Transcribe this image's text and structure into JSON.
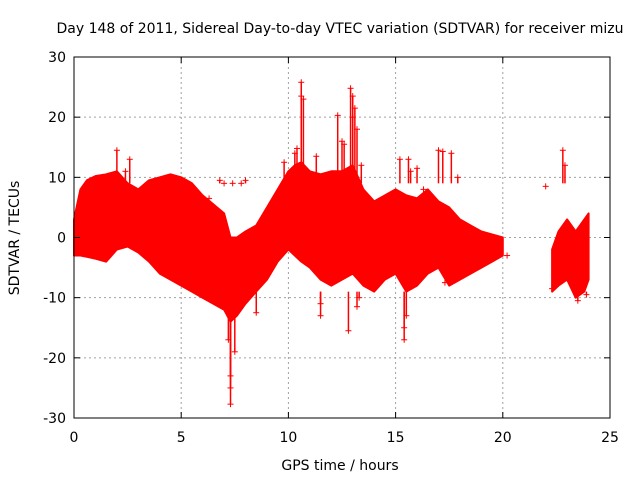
{
  "chart_data": {
    "type": "scatter",
    "title": "Day 148 of 2011, Sidereal Day-to-day VTEC variation (SDTVAR) for receiver mizu",
    "xlabel": "GPS time / hours",
    "ylabel": "SDTVAR / TECUs",
    "xlim": [
      0,
      25
    ],
    "ylim": [
      -30,
      30
    ],
    "xticks": [
      0,
      5,
      10,
      15,
      20,
      25
    ],
    "yticks": [
      -30,
      -20,
      -10,
      0,
      10,
      20,
      30
    ],
    "xtick_labels": [
      "0",
      "5",
      "10",
      "15",
      "20",
      "25"
    ],
    "ytick_labels": [
      "-30",
      "-20",
      "-10",
      "0",
      "10",
      "20",
      "30"
    ],
    "grid": true,
    "marker": "+",
    "series": [
      {
        "name": "SDTVAR",
        "color": "#ff0000",
        "envelope": {
          "x": [
            0,
            0.3,
            0.6,
            1,
            1.5,
            2,
            2.5,
            3,
            3.5,
            4,
            4.5,
            5,
            5.5,
            6,
            6.5,
            7,
            7.3,
            7.6,
            8,
            8.5,
            9,
            9.5,
            10,
            10.3,
            10.6,
            11,
            11.5,
            12,
            12.5,
            13,
            13.5,
            14,
            14.5,
            15,
            15.5,
            16,
            16.5,
            17,
            17.5,
            18,
            18.5,
            19,
            19.5,
            20
          ],
          "upper": [
            3,
            8,
            9.5,
            10.2,
            10.5,
            11,
            9,
            8,
            9.5,
            10,
            10.5,
            10,
            9,
            7,
            5.5,
            4,
            0,
            0,
            1,
            2,
            5,
            8,
            11,
            12,
            12.5,
            11,
            10.5,
            11,
            11,
            12,
            8,
            6,
            7,
            8,
            7,
            6.5,
            8,
            6,
            5,
            3,
            2,
            1,
            0.5,
            0
          ],
          "lower": [
            -3,
            -3,
            -3.2,
            -3.5,
            -4,
            -2,
            -1.5,
            -2.5,
            -4,
            -6,
            -7,
            -8,
            -9,
            -10,
            -11,
            -12,
            -14,
            -13,
            -11,
            -9,
            -7,
            -4,
            -2,
            -3,
            -4,
            -5,
            -7,
            -8,
            -7,
            -6,
            -8,
            -9,
            -7,
            -6,
            -9,
            -8,
            -6,
            -5,
            -8,
            -7,
            -6,
            -5,
            -4,
            -3
          ]
        },
        "envelope_2": {
          "x": [
            22.3,
            22.6,
            23,
            23.4,
            23.8,
            24
          ],
          "upper": [
            -2,
            1,
            3,
            1,
            3,
            4
          ],
          "lower": [
            -9,
            -8,
            -7,
            -10,
            -9,
            -7
          ]
        },
        "points": [
          {
            "x": 2.0,
            "y": 14.5
          },
          {
            "x": 2.6,
            "y": 13.0
          },
          {
            "x": 2.4,
            "y": 11.0
          },
          {
            "x": 5.8,
            "y": 7.0
          },
          {
            "x": 6.3,
            "y": 6.5
          },
          {
            "x": 6.8,
            "y": 9.5
          },
          {
            "x": 7.0,
            "y": 9.0
          },
          {
            "x": 7.4,
            "y": 9.0
          },
          {
            "x": 7.8,
            "y": 9.0
          },
          {
            "x": 8.0,
            "y": 9.5
          },
          {
            "x": 7.2,
            "y": -17.0
          },
          {
            "x": 7.3,
            "y": -23.0
          },
          {
            "x": 7.3,
            "y": -25.0
          },
          {
            "x": 7.3,
            "y": -27.7
          },
          {
            "x": 7.5,
            "y": -19.0
          },
          {
            "x": 8.5,
            "y": -12.5
          },
          {
            "x": 9.8,
            "y": 12.5
          },
          {
            "x": 10.3,
            "y": 14.0
          },
          {
            "x": 10.4,
            "y": 14.8
          },
          {
            "x": 10.6,
            "y": 23.5
          },
          {
            "x": 10.6,
            "y": 25.8
          },
          {
            "x": 10.7,
            "y": 23.0
          },
          {
            "x": 11.3,
            "y": 13.5
          },
          {
            "x": 11.5,
            "y": -11.0
          },
          {
            "x": 11.5,
            "y": -13.0
          },
          {
            "x": 12.3,
            "y": 20.3
          },
          {
            "x": 12.5,
            "y": 16.0
          },
          {
            "x": 12.6,
            "y": 15.5
          },
          {
            "x": 12.8,
            "y": -15.5
          },
          {
            "x": 12.9,
            "y": 24.8
          },
          {
            "x": 13.0,
            "y": 23.5
          },
          {
            "x": 13.0,
            "y": 20.0
          },
          {
            "x": 13.1,
            "y": 21.5
          },
          {
            "x": 13.2,
            "y": 18.0
          },
          {
            "x": 13.2,
            "y": -11.5
          },
          {
            "x": 13.3,
            "y": -10.0
          },
          {
            "x": 13.4,
            "y": 12.0
          },
          {
            "x": 15.2,
            "y": 13.0
          },
          {
            "x": 15.4,
            "y": -15.0
          },
          {
            "x": 15.4,
            "y": -17.0
          },
          {
            "x": 15.5,
            "y": -13.0
          },
          {
            "x": 15.6,
            "y": 13.0
          },
          {
            "x": 15.7,
            "y": 11.0
          },
          {
            "x": 16.0,
            "y": 11.5
          },
          {
            "x": 16.3,
            "y": 8.0
          },
          {
            "x": 17.0,
            "y": 14.5
          },
          {
            "x": 17.2,
            "y": 14.3
          },
          {
            "x": 17.3,
            "y": -7.5
          },
          {
            "x": 17.6,
            "y": 14.0
          },
          {
            "x": 17.9,
            "y": 10.0
          },
          {
            "x": 22.0,
            "y": 8.5
          },
          {
            "x": 22.8,
            "y": 14.5
          },
          {
            "x": 22.9,
            "y": 12.0
          },
          {
            "x": 22.3,
            "y": -8.5
          },
          {
            "x": 23.5,
            "y": -10.5
          },
          {
            "x": 23.9,
            "y": -9.5
          },
          {
            "x": 20.2,
            "y": -3.0
          }
        ]
      }
    ]
  }
}
